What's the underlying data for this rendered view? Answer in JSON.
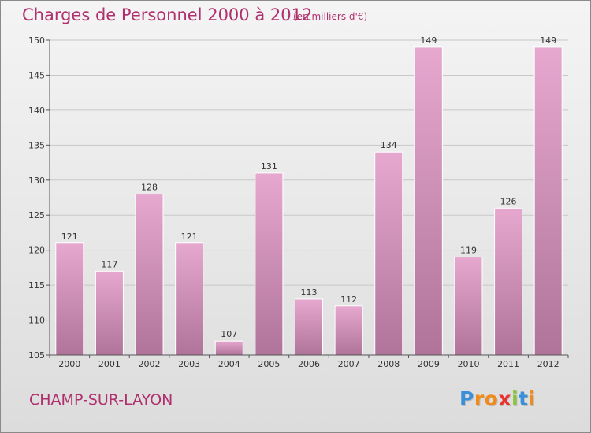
{
  "header": {
    "title": "Charges de Personnel 2000 à 2012",
    "unit_note": "(en milliers d'€)"
  },
  "footer": {
    "commune": "CHAMP-SUR-LAYON",
    "logo_letters": [
      "P",
      "r",
      "o",
      "x",
      "i",
      "t",
      "i"
    ],
    "logo_colors": [
      "#3a8fd8",
      "#f08a1c",
      "#f08a1c",
      "#e8332e",
      "#8ac43f",
      "#3a8fd8",
      "#f08a1c"
    ]
  },
  "colors": {
    "bar_top": "#e6a8cf",
    "bar_bottom": "#b07399",
    "axis": "#555555",
    "grid": "#c8c8c8"
  },
  "chart_data": {
    "type": "bar",
    "categories": [
      "2000",
      "2001",
      "2002",
      "2003",
      "2004",
      "2005",
      "2006",
      "2007",
      "2008",
      "2009",
      "2010",
      "2011",
      "2012"
    ],
    "values": [
      121,
      117,
      128,
      121,
      107,
      131,
      113,
      112,
      134,
      149,
      119,
      126,
      149
    ],
    "value_labels": [
      "121",
      "117",
      "128",
      "121",
      "107",
      "131",
      "113",
      "112",
      "134",
      "149",
      "119",
      "126",
      "149"
    ],
    "yticks": [
      "105",
      "110",
      "115",
      "120",
      "125",
      "130",
      "135",
      "140",
      "145",
      "150"
    ],
    "ylim": [
      105,
      150
    ],
    "title": "Charges de Personnel 2000 à 2012",
    "xlabel": "",
    "ylabel": "",
    "grid": true
  }
}
